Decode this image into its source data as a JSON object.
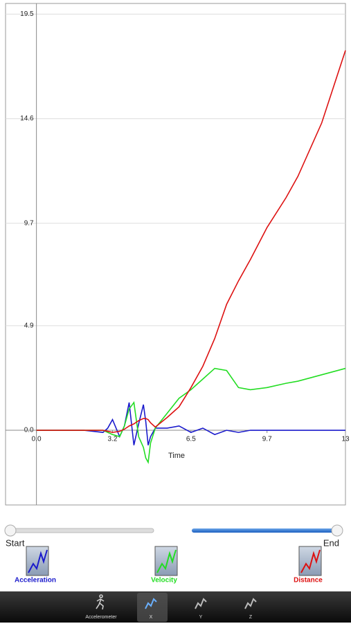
{
  "chart_data": {
    "type": "line",
    "xlabel": "Time",
    "x": [
      0,
      1,
      2,
      2.8,
      3.0,
      3.2,
      3.5,
      3.7,
      3.9,
      4.1,
      4.3,
      4.5,
      4.6,
      4.7,
      4.8,
      5.0,
      5.5,
      6.0,
      6.5,
      7.0,
      7.5,
      8.0,
      8.5,
      9.0,
      9.7,
      10.5,
      11.0,
      12.0,
      13.0
    ],
    "series": [
      {
        "name": "Acceleration",
        "color": "#1a1acc",
        "values": [
          0,
          0,
          0,
          -0.1,
          0.1,
          0.5,
          -0.3,
          0.2,
          1.3,
          -0.7,
          0.3,
          1.2,
          0.4,
          -0.7,
          -0.3,
          0.1,
          0.1,
          0.2,
          -0.1,
          0.1,
          -0.2,
          0.0,
          -0.1,
          0.0,
          0.0,
          0.0,
          0.0,
          0.0,
          0.0
        ]
      },
      {
        "name": "Velocity",
        "color": "#22dd22",
        "values": [
          0,
          0,
          0,
          0,
          -0.1,
          -0.2,
          -0.3,
          0.2,
          1.0,
          1.3,
          -0.3,
          -0.8,
          -1.3,
          -1.5,
          -0.6,
          0.1,
          0.8,
          1.5,
          1.9,
          2.4,
          2.9,
          2.8,
          2.0,
          1.9,
          2.0,
          2.2,
          2.3,
          2.6,
          2.9
        ]
      },
      {
        "name": "Distance",
        "color": "#dd1111",
        "values": [
          0,
          0,
          0,
          0,
          -0.05,
          -0.1,
          -0.05,
          0.05,
          0.2,
          0.3,
          0.45,
          0.55,
          0.55,
          0.5,
          0.35,
          0.15,
          0.6,
          1.1,
          2.0,
          3.0,
          4.3,
          5.9,
          7.0,
          8.0,
          9.5,
          10.9,
          11.9,
          14.4,
          17.8
        ]
      }
    ],
    "xlim": [
      -1.3,
      13
    ],
    "ylim": [
      -3.5,
      20
    ],
    "xticks": [
      {
        "value": 0,
        "label": "0.0"
      },
      3.2,
      6.5,
      9.7,
      13
    ],
    "yticks": [
      {
        "value": 0,
        "label": "0.0"
      },
      4.9,
      9.7,
      14.6,
      19.5
    ],
    "grid": true
  },
  "slider": {
    "start": "Start",
    "end": "End"
  },
  "tabs": [
    "Accelerometer",
    "X",
    "Y",
    "Z"
  ]
}
